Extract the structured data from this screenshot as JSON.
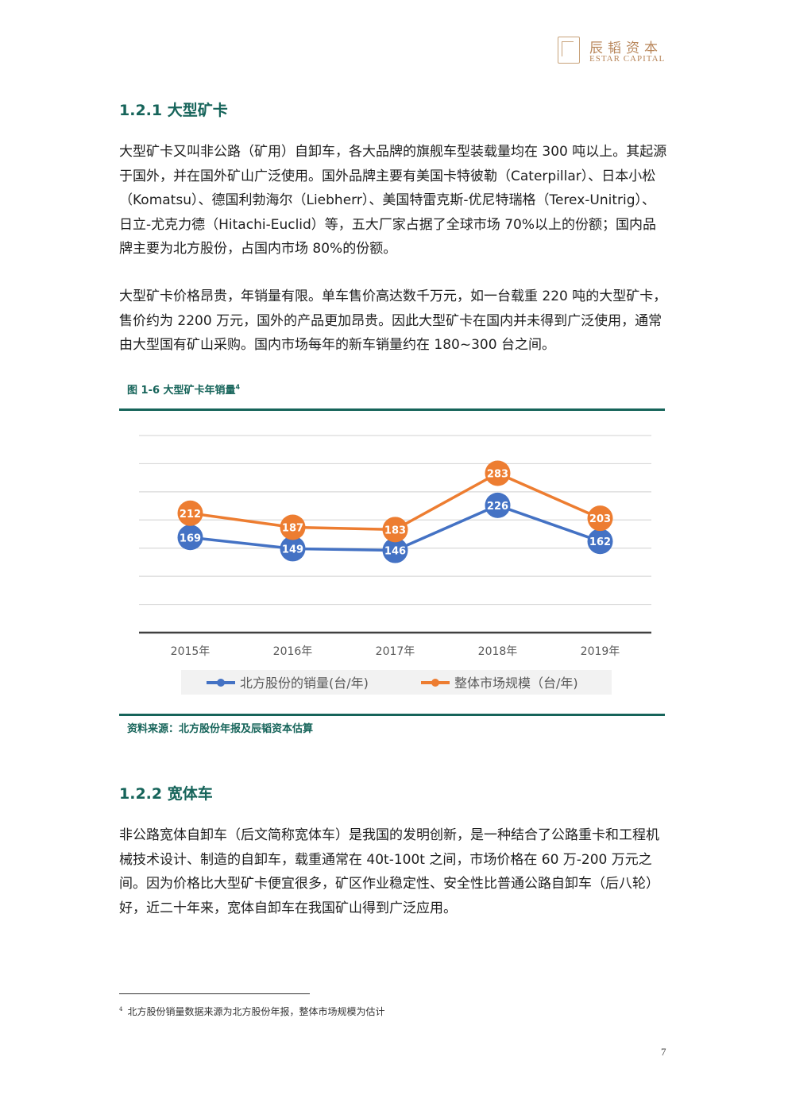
{
  "header": {
    "logo_cn": "辰韬资本",
    "logo_en": "ESTAR CAPITAL"
  },
  "section1": {
    "heading": "1.2.1  大型矿卡",
    "para1": "大型矿卡又叫非公路（矿用）自卸车，各大品牌的旗舰车型装载量均在 300 吨以上。其起源于国外，并在国外矿山广泛使用。国外品牌主要有美国卡特彼勒（Caterpillar）、日本小松（Komatsu）、德国利勃海尔（Liebherr）、美国特雷克斯-优尼特瑞格（Terex-Unitrig）、日立-尤克力德（Hitachi-Euclid）等，五大厂家占据了全球市场 70%以上的份额；国内品牌主要为北方股份，占国内市场 80%的份额。",
    "para2": "大型矿卡价格昂贵，年销量有限。单车售价高达数千万元，如一台载重 220 吨的大型矿卡，售价约为 2200 万元，国外的产品更加昂贵。因此大型矿卡在国内并未得到广泛使用，通常由大型国有矿山采购。国内市场每年的新车销量约在 180~300 台之间。"
  },
  "figure": {
    "title": "图 1-6  大型矿卡年销量",
    "footnote_ref": "4",
    "source": "资料来源：北方股份年报及辰韬资本估算"
  },
  "chart_data": {
    "type": "line",
    "categories": [
      "2015年",
      "2016年",
      "2017年",
      "2018年",
      "2019年"
    ],
    "series": [
      {
        "name": "北方股份的销量(台/年)",
        "values": [
          169,
          149,
          146,
          226,
          162
        ],
        "color": "#4472c4"
      },
      {
        "name": "整体市场规模（台/年)",
        "values": [
          212,
          187,
          183,
          283,
          203
        ],
        "color": "#ed7d31"
      }
    ],
    "ylim": [
      0,
      350
    ],
    "grid": true,
    "legend_position": "bottom"
  },
  "section2": {
    "heading": "1.2.2  宽体车",
    "para1": "非公路宽体自卸车（后文简称宽体车）是我国的发明创新，是一种结合了公路重卡和工程机械技术设计、制造的自卸车，载重通常在 40t-100t 之间，市场价格在  60 万-200 万元之间。因为价格比大型矿卡便宜很多，矿区作业稳定性、安全性比普通公路自卸车（后八轮）好，近二十年来，宽体自卸车在我国矿山得到广泛应用。"
  },
  "footnote": {
    "number": "4",
    "text": "北方股份销量数据来源为北方股份年报，整体市场规模为估计"
  },
  "page_number": "7"
}
